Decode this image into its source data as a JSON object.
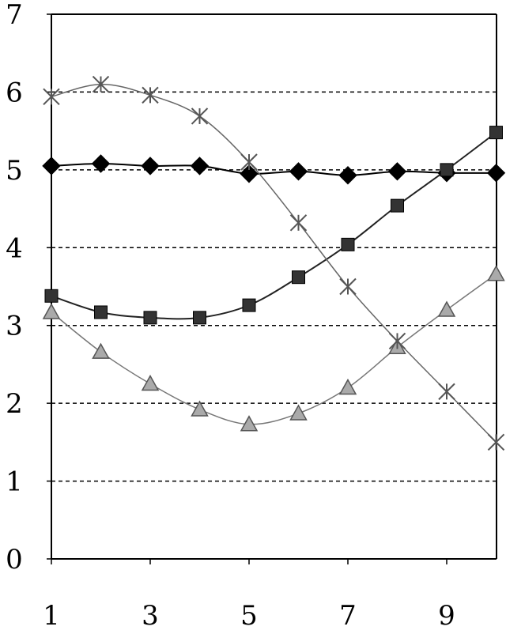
{
  "chart_data": {
    "type": "line",
    "title": "",
    "xlabel": "",
    "ylabel": "",
    "x": [
      1,
      2,
      3,
      4,
      5,
      6,
      7,
      8,
      9,
      10
    ],
    "xlim": [
      1,
      10
    ],
    "ylim": [
      0,
      7
    ],
    "x_ticks": [
      "1",
      "3",
      "5",
      "7",
      "9"
    ],
    "x_tick_values": [
      1,
      3,
      5,
      7,
      9
    ],
    "y_ticks": [
      "0",
      "1",
      "2",
      "3",
      "4",
      "5",
      "6",
      "7"
    ],
    "y_tick_values": [
      0,
      1,
      2,
      3,
      4,
      5,
      6,
      7
    ],
    "grid": {
      "horizontal": true,
      "style": "dashed",
      "color": "#000000"
    },
    "legend": "none",
    "series": [
      {
        "marker": "diamond",
        "color": "#000000",
        "line_color": "#000000",
        "values": [
          5.05,
          5.08,
          5.05,
          5.05,
          4.95,
          4.98,
          4.93,
          4.98,
          4.96,
          4.96
        ]
      },
      {
        "marker": "square",
        "color": "#333333",
        "line_color": "#222222",
        "values": [
          3.38,
          3.17,
          3.1,
          3.1,
          3.26,
          3.62,
          4.04,
          4.54,
          5.0,
          5.48
        ]
      },
      {
        "marker": "triangle",
        "color": "#aaaaaa",
        "line_color": "#777777",
        "values": [
          3.17,
          2.66,
          2.25,
          1.92,
          1.73,
          1.87,
          2.2,
          2.72,
          3.2,
          3.66
        ]
      },
      {
        "marker": "asterisk",
        "color": "#555555",
        "line_color": "#666666",
        "values": [
          5.94,
          6.1,
          5.96,
          5.69,
          5.1,
          4.32,
          3.5,
          2.8,
          2.15,
          1.5
        ]
      }
    ]
  }
}
